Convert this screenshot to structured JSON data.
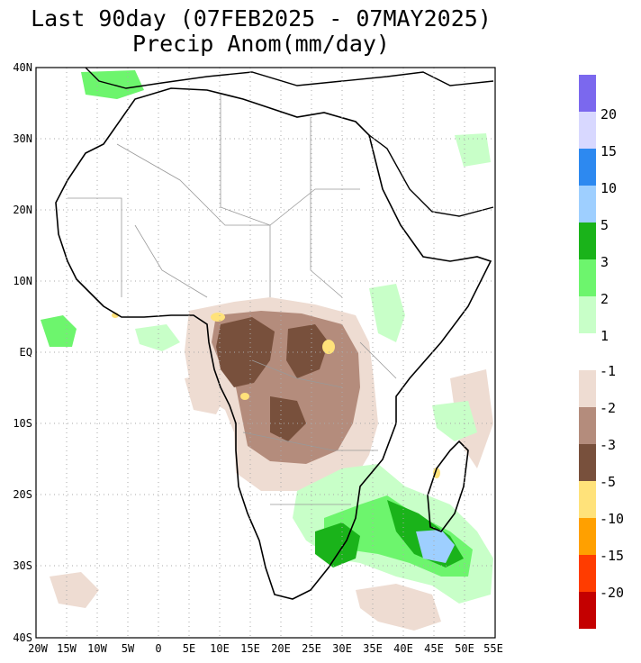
{
  "title": {
    "line1": "Last 90day (07FEB2025 - 07MAY2025)",
    "line2": "Precip Anom(mm/day)"
  },
  "map": {
    "lat_range": [
      -40,
      40
    ],
    "lon_range": [
      -20,
      55
    ],
    "lat_labels": [
      "40N",
      "30N",
      "20N",
      "10N",
      "EQ",
      "10S",
      "20S",
      "30S",
      "40S"
    ],
    "lon_labels": [
      "20W",
      "15W",
      "10W",
      "5W",
      "0",
      "5E",
      "10E",
      "15E",
      "20E",
      "25E",
      "30E",
      "35E",
      "40E",
      "45E",
      "50E",
      "55E"
    ],
    "gridlines": "dotted",
    "land_color": "#ffffff",
    "coast_color": "#000000",
    "border_color": "#999999"
  },
  "positive_legend": {
    "swatches": [
      "#7b68ee",
      "#d8d8ff",
      "#2d89f0",
      "#9ecfff",
      "#1ab31a",
      "#6df56d",
      "#c8ffc8"
    ],
    "labels": [
      "20",
      "15",
      "10",
      "5",
      "3",
      "2",
      "1"
    ]
  },
  "negative_legend": {
    "swatches": [
      "#eedcd2",
      "#b48c7c",
      "#78503c",
      "#ffe27a",
      "#ffa000",
      "#ff3c00",
      "#c40000"
    ],
    "labels": [
      "-1",
      "-2",
      "-3",
      "-5",
      "-10",
      "-15",
      "-20"
    ]
  },
  "anomaly_regions": [
    {
      "type": "wet",
      "level": "1",
      "color": "#c8ffc8"
    },
    {
      "type": "wet",
      "level": "2",
      "color": "#6df56d"
    },
    {
      "type": "wet",
      "level": "3",
      "color": "#1ab31a"
    },
    {
      "type": "wet",
      "level": "5",
      "color": "#9ecfff"
    },
    {
      "type": "dry",
      "level": "-1",
      "color": "#eedcd2"
    },
    {
      "type": "dry",
      "level": "-2",
      "color": "#b48c7c"
    },
    {
      "type": "dry",
      "level": "-3",
      "color": "#78503c"
    },
    {
      "type": "dry",
      "level": "-5",
      "color": "#ffe27a"
    }
  ]
}
